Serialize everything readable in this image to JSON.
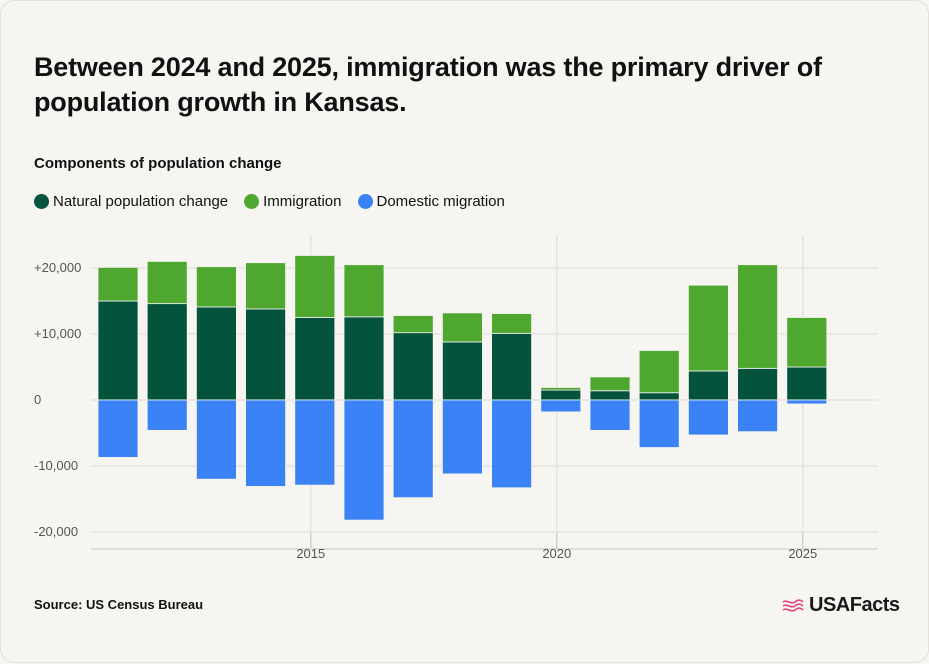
{
  "title": "Between 2024 and 2025, immigration was the primary driver of population growth in Kansas.",
  "subtitle": "Components of population change",
  "legend": [
    {
      "label": "Natural population change",
      "color": "#03533d"
    },
    {
      "label": "Immigration",
      "color": "#4ea72e"
    },
    {
      "label": "Domestic migration",
      "color": "#3b82f6"
    }
  ],
  "source": "Source: US Census Bureau",
  "brand": "USAFacts",
  "chart_data": {
    "type": "bar",
    "stacked": true,
    "x": [
      2011,
      2012,
      2013,
      2014,
      2015,
      2016,
      2017,
      2018,
      2019,
      2020,
      2021,
      2022,
      2023,
      2024,
      2025
    ],
    "series": [
      {
        "name": "Natural population change",
        "color": "#03533d",
        "values": [
          15000,
          14600,
          14100,
          13800,
          12500,
          12600,
          10200,
          8800,
          10100,
          1500,
          1400,
          1100,
          4400,
          4800,
          5000
        ]
      },
      {
        "name": "Immigration",
        "color": "#4ea72e",
        "values": [
          5100,
          6400,
          6100,
          7000,
          9400,
          7900,
          2600,
          4400,
          3000,
          400,
          2100,
          6400,
          13000,
          15700,
          7500
        ]
      },
      {
        "name": "Domestic migration",
        "color": "#3b82f6",
        "values": [
          -8700,
          -4600,
          -12000,
          -13100,
          -12900,
          -18200,
          -14800,
          -11200,
          -13300,
          -1800,
          -4600,
          -7200,
          -5300,
          -4800,
          -600
        ]
      }
    ],
    "ylim": [
      -20000,
      20000
    ],
    "yticks": [
      20000,
      10000,
      0,
      -10000,
      -20000
    ],
    "ytick_labels": [
      "+20,000",
      "+10,000",
      "0",
      "-10,000",
      "-20,000"
    ],
    "xticks": [
      2015,
      2020,
      2025
    ],
    "xtick_labels": [
      "2015",
      "2020",
      "2025"
    ],
    "grid": true
  }
}
